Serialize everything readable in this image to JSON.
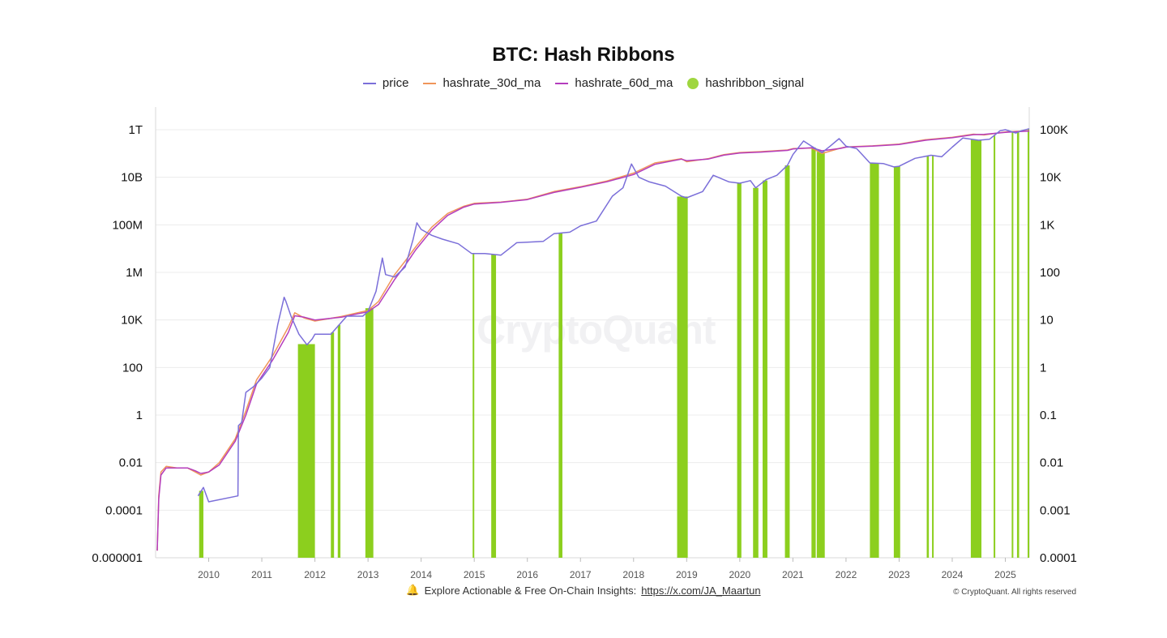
{
  "header": {
    "title": "BTC: Hash Ribbons"
  },
  "legend": [
    {
      "label": "price",
      "color": "#7b6fd9",
      "kind": "line"
    },
    {
      "label": "hashrate_30d_ma",
      "color": "#f0955a",
      "kind": "line"
    },
    {
      "label": "hashrate_60d_ma",
      "color": "#b43dbd",
      "kind": "line"
    },
    {
      "label": "hashribbon_signal",
      "color": "#9fd63f",
      "kind": "dot"
    }
  ],
  "footer": {
    "bell_icon": "bell-icon",
    "text": "Explore Actionable & Free On-Chain Insights:",
    "link_text": "https://x.com/JA_Maartun",
    "copyright": "© CryptoQuant. All rights reserved"
  },
  "watermark": "CryptoQuant",
  "chart_data": {
    "type": "line",
    "title": "BTC: Hash Ribbons",
    "x_ticks": [
      "2010",
      "2011",
      "2012",
      "2013",
      "2014",
      "2015",
      "2016",
      "2017",
      "2018",
      "2019",
      "2020",
      "2021",
      "2022",
      "2023",
      "2024",
      "2025"
    ],
    "xlim": [
      2009.0,
      2025.45
    ],
    "y_left": {
      "scale": "log",
      "ticks": [
        "1T",
        "10B",
        "100M",
        "1M",
        "10K",
        "100",
        "1",
        "0.01",
        "0.0001",
        "0.000001"
      ],
      "tick_values": [
        1000000000000.0,
        10000000000.0,
        100000000.0,
        1000000.0,
        10000.0,
        100,
        1,
        0.01,
        0.0001,
        1e-06
      ],
      "ylim": [
        1e-06,
        1000000000000.0
      ]
    },
    "y_right": {
      "scale": "log",
      "ticks": [
        "100K",
        "10K",
        "1K",
        "100",
        "10",
        "1",
        "0.1",
        "0.01",
        "0.001",
        "0.0001"
      ],
      "tick_values": [
        100000,
        10000,
        1000,
        100,
        10,
        1,
        0.1,
        0.01,
        0.001,
        0.0001
      ],
      "ylim": [
        0.0001,
        100000
      ]
    },
    "grid": "horizontal",
    "legend_position": "top-center",
    "series": [
      {
        "name": "price",
        "axis": "right",
        "color": "#7b6fd9",
        "x": [
          2009.8,
          2009.9,
          2010.0,
          2010.55,
          2010.56,
          2010.62,
          2010.7,
          2010.85,
          2011.0,
          2011.15,
          2011.3,
          2011.42,
          2011.45,
          2011.55,
          2011.7,
          2011.85,
          2011.95,
          2012.0,
          2012.3,
          2012.6,
          2012.9,
          2013.0,
          2013.15,
          2013.27,
          2013.33,
          2013.5,
          2013.7,
          2013.85,
          2013.92,
          2014.0,
          2014.2,
          2014.4,
          2014.7,
          2014.95,
          2015.2,
          2015.5,
          2015.8,
          2016.0,
          2016.3,
          2016.5,
          2016.8,
          2017.0,
          2017.3,
          2017.6,
          2017.8,
          2017.96,
          2018.1,
          2018.3,
          2018.6,
          2018.9,
          2019.0,
          2019.3,
          2019.5,
          2019.8,
          2020.0,
          2020.2,
          2020.3,
          2020.5,
          2020.7,
          2020.9,
          2021.0,
          2021.2,
          2021.35,
          2021.55,
          2021.7,
          2021.87,
          2022.0,
          2022.2,
          2022.45,
          2022.7,
          2022.9,
          2023.0,
          2023.3,
          2023.6,
          2023.8,
          2024.0,
          2024.2,
          2024.5,
          2024.7,
          2024.9,
          2025.0,
          2025.2,
          2025.3,
          2025.45
        ],
        "values": [
          0.002,
          0.003,
          0.0015,
          0.002,
          0.06,
          0.07,
          0.3,
          0.4,
          0.6,
          1,
          8,
          30,
          25,
          12,
          5,
          3,
          4,
          5,
          5,
          12,
          12,
          15,
          40,
          200,
          90,
          80,
          130,
          500,
          1100,
          800,
          600,
          500,
          400,
          250,
          250,
          230,
          420,
          430,
          450,
          650,
          700,
          950,
          1200,
          4000,
          6000,
          19000,
          10000,
          8000,
          6500,
          4000,
          3700,
          5000,
          11000,
          8000,
          7500,
          8500,
          6000,
          9000,
          11000,
          18000,
          30000,
          58000,
          45000,
          33000,
          45000,
          65000,
          45000,
          40000,
          20000,
          19500,
          16500,
          17000,
          25000,
          29000,
          27000,
          43000,
          67000,
          60000,
          63000,
          95000,
          100000,
          85000,
          95000,
          105000
        ]
      },
      {
        "name": "hashrate_30d_ma",
        "axis": "left",
        "color": "#f0955a",
        "x": [
          2009.03,
          2009.06,
          2009.1,
          2009.2,
          2009.4,
          2009.6,
          2009.75,
          2009.85,
          2010.0,
          2010.2,
          2010.5,
          2010.7,
          2010.9,
          2011.2,
          2011.5,
          2011.62,
          2011.8,
          2012.0,
          2012.5,
          2012.8,
          2013.0,
          2013.2,
          2013.5,
          2013.7,
          2013.9,
          2014.2,
          2014.5,
          2014.8,
          2015.0,
          2015.5,
          2016.0,
          2016.5,
          2017.0,
          2017.5,
          2018.0,
          2018.4,
          2018.9,
          2019.0,
          2019.4,
          2019.7,
          2020.0,
          2020.4,
          2020.9,
          2021.0,
          2021.35,
          2021.55,
          2021.9,
          2022.0,
          2022.5,
          2023.0,
          2023.5,
          2024.0,
          2024.4,
          2024.6,
          2025.0,
          2025.45
        ],
        "values": [
          2e-06,
          0.0004,
          0.004,
          0.007,
          0.006,
          0.006,
          0.004,
          0.003,
          0.004,
          0.01,
          0.1,
          1.5,
          30,
          300,
          5000,
          20000,
          12000,
          9000,
          14000,
          20000,
          25000,
          60000,
          800000,
          3000000,
          12000000,
          80000000,
          300000000,
          600000000,
          800000000,
          900000000,
          1200000000,
          2500000000,
          4000000000,
          7000000000,
          15000000000,
          40000000000,
          60000000000,
          45000000000,
          60000000000,
          90000000000,
          110000000000,
          120000000000,
          140000000000,
          160000000000,
          170000000000,
          100000000000,
          170000000000,
          190000000000,
          210000000000,
          250000000000,
          380000000000,
          480000000000,
          650000000000,
          600000000000,
          800000000000,
          900000000000
        ]
      },
      {
        "name": "hashrate_60d_ma",
        "axis": "left",
        "color": "#b43dbd",
        "x": [
          2009.03,
          2009.06,
          2009.1,
          2009.2,
          2009.4,
          2009.6,
          2009.75,
          2009.85,
          2010.0,
          2010.2,
          2010.5,
          2010.7,
          2010.9,
          2011.2,
          2011.5,
          2011.62,
          2011.8,
          2012.0,
          2012.5,
          2012.8,
          2013.0,
          2013.2,
          2013.5,
          2013.7,
          2013.9,
          2014.2,
          2014.5,
          2014.8,
          2015.0,
          2015.5,
          2016.0,
          2016.5,
          2017.0,
          2017.5,
          2018.0,
          2018.4,
          2018.9,
          2019.0,
          2019.4,
          2019.7,
          2020.0,
          2020.4,
          2020.9,
          2021.0,
          2021.35,
          2021.55,
          2021.9,
          2022.0,
          2022.5,
          2023.0,
          2023.5,
          2024.0,
          2024.4,
          2024.6,
          2025.0,
          2025.45
        ],
        "values": [
          2e-06,
          0.0003,
          0.003,
          0.006,
          0.006,
          0.006,
          0.0045,
          0.0035,
          0.004,
          0.008,
          0.08,
          1,
          20,
          200,
          3000,
          15000,
          13000,
          10000,
          13000,
          18000,
          22000,
          45000,
          500000,
          2000000,
          9000000,
          60000000,
          250000000,
          550000000,
          750000000,
          880000000,
          1150000000,
          2300000000,
          3800000000,
          6500000000,
          13000000000,
          35000000000,
          58000000000,
          50000000000,
          58000000000,
          85000000000,
          105000000000,
          115000000000,
          135000000000,
          155000000000,
          175000000000,
          130000000000,
          165000000000,
          185000000000,
          205000000000,
          240000000000,
          360000000000,
          460000000000,
          620000000000,
          640000000000,
          780000000000,
          880000000000
        ]
      }
    ],
    "hashribbon_signal": {
      "name": "hashribbon_signal",
      "color": "#8ccf1e",
      "periods": [
        [
          2009.82,
          2009.9
        ],
        [
          2011.68,
          2012.0
        ],
        [
          2012.3,
          2012.36
        ],
        [
          2012.43,
          2012.48
        ],
        [
          2012.95,
          2013.1
        ],
        [
          2014.97,
          2015.0
        ],
        [
          2015.32,
          2015.41
        ],
        [
          2016.59,
          2016.66
        ],
        [
          2018.82,
          2019.02
        ],
        [
          2019.95,
          2020.03
        ],
        [
          2020.25,
          2020.35
        ],
        [
          2020.43,
          2020.52
        ],
        [
          2020.85,
          2020.94
        ],
        [
          2021.35,
          2021.43
        ],
        [
          2021.45,
          2021.6
        ],
        [
          2022.45,
          2022.62
        ],
        [
          2022.9,
          2023.02
        ],
        [
          2023.52,
          2023.56
        ],
        [
          2023.62,
          2023.64
        ],
        [
          2024.35,
          2024.55
        ],
        [
          2024.78,
          2024.8
        ],
        [
          2025.12,
          2025.15
        ],
        [
          2025.22,
          2025.26
        ],
        [
          2025.42,
          2025.45
        ]
      ]
    }
  }
}
